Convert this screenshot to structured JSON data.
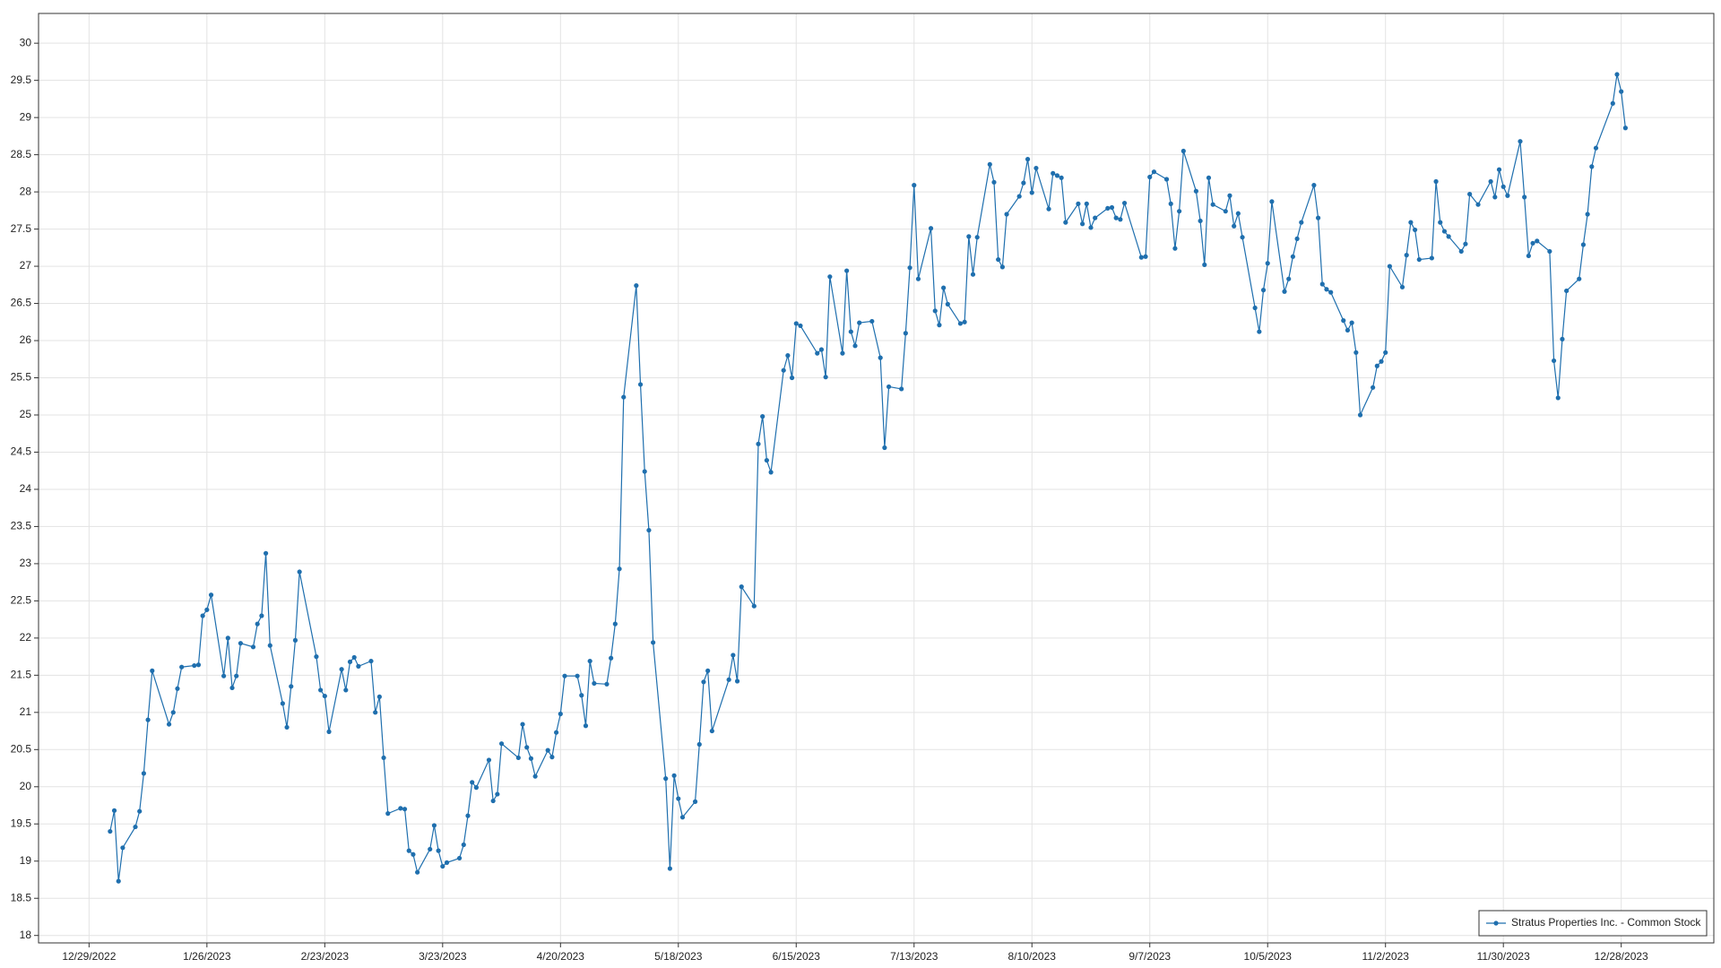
{
  "chart_data": {
    "type": "line",
    "x": [
      "1/3/2023",
      "1/4/2023",
      "1/5/2023",
      "1/6/2023",
      "1/9/2023",
      "1/10/2023",
      "1/11/2023",
      "1/12/2023",
      "1/13/2023",
      "1/17/2023",
      "1/18/2023",
      "1/19/2023",
      "1/20/2023",
      "1/23/2023",
      "1/24/2023",
      "1/25/2023",
      "1/26/2023",
      "1/27/2023",
      "1/30/2023",
      "1/31/2023",
      "2/1/2023",
      "2/2/2023",
      "2/3/2023",
      "2/6/2023",
      "2/7/2023",
      "2/8/2023",
      "2/9/2023",
      "2/10/2023",
      "2/13/2023",
      "2/14/2023",
      "2/15/2023",
      "2/16/2023",
      "2/17/2023",
      "2/21/2023",
      "2/22/2023",
      "2/23/2023",
      "2/24/2023",
      "2/27/2023",
      "2/28/2023",
      "3/1/2023",
      "3/2/2023",
      "3/3/2023",
      "3/6/2023",
      "3/7/2023",
      "3/8/2023",
      "3/9/2023",
      "3/10/2023",
      "3/13/2023",
      "3/14/2023",
      "3/15/2023",
      "3/16/2023",
      "3/17/2023",
      "3/20/2023",
      "3/21/2023",
      "3/22/2023",
      "3/23/2023",
      "3/24/2023",
      "3/27/2023",
      "3/28/2023",
      "3/29/2023",
      "3/30/2023",
      "3/31/2023",
      "4/3/2023",
      "4/4/2023",
      "4/5/2023",
      "4/6/2023",
      "4/10/2023",
      "4/11/2023",
      "4/12/2023",
      "4/13/2023",
      "4/14/2023",
      "4/17/2023",
      "4/18/2023",
      "4/19/2023",
      "4/20/2023",
      "4/21/2023",
      "4/24/2023",
      "4/25/2023",
      "4/26/2023",
      "4/27/2023",
      "4/28/2023",
      "5/1/2023",
      "5/2/2023",
      "5/3/2023",
      "5/4/2023",
      "5/5/2023",
      "5/8/2023",
      "5/9/2023",
      "5/10/2023",
      "5/11/2023",
      "5/12/2023",
      "5/15/2023",
      "5/16/2023",
      "5/17/2023",
      "5/18/2023",
      "5/19/2023",
      "5/22/2023",
      "5/23/2023",
      "5/24/2023",
      "5/25/2023",
      "5/26/2023",
      "5/30/2023",
      "5/31/2023",
      "6/1/2023",
      "6/2/2023",
      "6/5/2023",
      "6/6/2023",
      "6/7/2023",
      "6/8/2023",
      "6/9/2023",
      "6/12/2023",
      "6/13/2023",
      "6/14/2023",
      "6/15/2023",
      "6/16/2023",
      "6/20/2023",
      "6/21/2023",
      "6/22/2023",
      "6/23/2023",
      "6/26/2023",
      "6/27/2023",
      "6/28/2023",
      "6/29/2023",
      "6/30/2023",
      "7/3/2023",
      "7/5/2023",
      "7/6/2023",
      "7/7/2023",
      "7/10/2023",
      "7/11/2023",
      "7/12/2023",
      "7/13/2023",
      "7/14/2023",
      "7/17/2023",
      "7/18/2023",
      "7/19/2023",
      "7/20/2023",
      "7/21/2023",
      "7/24/2023",
      "7/25/2023",
      "7/26/2023",
      "7/27/2023",
      "7/28/2023",
      "7/31/2023",
      "8/1/2023",
      "8/2/2023",
      "8/3/2023",
      "8/4/2023",
      "8/7/2023",
      "8/8/2023",
      "8/9/2023",
      "8/10/2023",
      "8/11/2023",
      "8/14/2023",
      "8/15/2023",
      "8/16/2023",
      "8/17/2023",
      "8/18/2023",
      "8/21/2023",
      "8/22/2023",
      "8/23/2023",
      "8/24/2023",
      "8/25/2023",
      "8/28/2023",
      "8/29/2023",
      "8/30/2023",
      "8/31/2023",
      "9/1/2023",
      "9/5/2023",
      "9/6/2023",
      "9/7/2023",
      "9/8/2023",
      "9/11/2023",
      "9/12/2023",
      "9/13/2023",
      "9/14/2023",
      "9/15/2023",
      "9/18/2023",
      "9/19/2023",
      "9/20/2023",
      "9/21/2023",
      "9/22/2023",
      "9/25/2023",
      "9/26/2023",
      "9/27/2023",
      "9/28/2023",
      "9/29/2023",
      "10/2/2023",
      "10/3/2023",
      "10/4/2023",
      "10/5/2023",
      "10/6/2023",
      "10/9/2023",
      "10/10/2023",
      "10/11/2023",
      "10/12/2023",
      "10/13/2023",
      "10/16/2023",
      "10/17/2023",
      "10/18/2023",
      "10/19/2023",
      "10/20/2023",
      "10/23/2023",
      "10/24/2023",
      "10/25/2023",
      "10/26/2023",
      "10/27/2023",
      "10/30/2023",
      "10/31/2023",
      "11/1/2023",
      "11/2/2023",
      "11/3/2023",
      "11/6/2023",
      "11/7/2023",
      "11/8/2023",
      "11/9/2023",
      "11/10/2023",
      "11/13/2023",
      "11/14/2023",
      "11/15/2023",
      "11/16/2023",
      "11/17/2023",
      "11/20/2023",
      "11/21/2023",
      "11/22/2023",
      "11/24/2023",
      "11/27/2023",
      "11/28/2023",
      "11/29/2023",
      "11/30/2023",
      "12/1/2023",
      "12/4/2023",
      "12/5/2023",
      "12/6/2023",
      "12/7/2023",
      "12/8/2023",
      "12/11/2023",
      "12/12/2023",
      "12/13/2023",
      "12/14/2023",
      "12/15/2023",
      "12/18/2023",
      "12/19/2023",
      "12/20/2023",
      "12/21/2023",
      "12/22/2023",
      "12/26/2023",
      "12/27/2023",
      "12/28/2023",
      "12/29/2023"
    ],
    "series": [
      {
        "name": "Stratus Properties Inc. - Common Stock",
        "color": "#1f6fae",
        "values": [
          19.4,
          19.68,
          18.73,
          19.18,
          19.46,
          19.67,
          20.18,
          20.9,
          21.56,
          20.84,
          21.0,
          21.32,
          21.61,
          21.63,
          21.64,
          22.3,
          22.38,
          22.58,
          21.49,
          22.0,
          21.33,
          21.49,
          21.93,
          21.88,
          22.19,
          22.3,
          23.14,
          21.9,
          21.12,
          20.8,
          21.35,
          21.97,
          22.89,
          21.75,
          21.3,
          21.22,
          20.74,
          21.58,
          21.3,
          21.68,
          21.74,
          21.62,
          21.69,
          21.0,
          21.21,
          20.39,
          19.64,
          19.71,
          19.7,
          19.14,
          19.09,
          18.85,
          19.16,
          19.48,
          19.14,
          18.93,
          18.98,
          19.04,
          19.22,
          19.61,
          20.06,
          19.99,
          20.36,
          19.81,
          19.9,
          20.58,
          20.39,
          20.84,
          20.53,
          20.38,
          20.14,
          20.49,
          20.4,
          20.73,
          20.98,
          21.49,
          21.49,
          21.23,
          20.82,
          21.69,
          21.39,
          21.38,
          21.73,
          22.19,
          22.93,
          25.24,
          26.74,
          25.41,
          24.24,
          23.45,
          21.94,
          20.11,
          18.9,
          20.15,
          19.84,
          19.59,
          19.8,
          20.57,
          21.41,
          21.56,
          20.75,
          21.44,
          21.77,
          21.42,
          22.69,
          22.43,
          24.61,
          24.98,
          24.39,
          24.23,
          25.6,
          25.8,
          25.5,
          26.23,
          26.2,
          25.83,
          25.88,
          25.51,
          26.86,
          25.83,
          26.94,
          26.12,
          25.93,
          26.24,
          26.26,
          25.77,
          24.56,
          25.38,
          25.35,
          26.1,
          26.98,
          28.09,
          26.83,
          27.51,
          26.4,
          26.21,
          26.71,
          26.49,
          26.23,
          26.25,
          27.4,
          26.89,
          27.39,
          28.37,
          28.13,
          27.09,
          26.99,
          27.7,
          27.94,
          28.12,
          28.44,
          27.99,
          28.32,
          27.77,
          28.25,
          28.22,
          28.19,
          27.59,
          27.84,
          27.57,
          27.84,
          27.52,
          27.65,
          27.78,
          27.79,
          27.65,
          27.63,
          27.85,
          27.12,
          27.13,
          28.2,
          28.27,
          28.17,
          27.84,
          27.24,
          27.74,
          28.55,
          28.01,
          27.61,
          27.02,
          28.19,
          27.83,
          27.74,
          27.95,
          27.54,
          27.71,
          27.39,
          26.44,
          26.12,
          26.68,
          27.04,
          27.87,
          26.66,
          26.83,
          27.13,
          27.37,
          27.59,
          28.09,
          27.65,
          26.76,
          26.69,
          26.65,
          26.27,
          26.14,
          26.24,
          25.84,
          25.0,
          25.37,
          25.66,
          25.72,
          25.84,
          27.0,
          26.72,
          27.15,
          27.59,
          27.49,
          27.09,
          27.11,
          28.14,
          27.59,
          27.47,
          27.4,
          27.2,
          27.3,
          27.97,
          27.83,
          28.14,
          27.93,
          28.3,
          28.07,
          27.95,
          28.68,
          27.93,
          27.14,
          27.31,
          27.34,
          27.2,
          25.73,
          25.23,
          26.02,
          26.67,
          26.83,
          27.29,
          27.7,
          28.34,
          28.59,
          29.19,
          29.58,
          29.35,
          28.86
        ]
      }
    ],
    "xlim": [
      "12/17/2022",
      "1/19/2024"
    ],
    "xticks": [
      "12/29/2022",
      "1/26/2023",
      "2/23/2023",
      "3/23/2023",
      "4/20/2023",
      "5/18/2023",
      "6/15/2023",
      "7/13/2023",
      "8/10/2023",
      "9/7/2023",
      "10/5/2023",
      "11/2/2023",
      "11/30/2023",
      "12/28/2023"
    ],
    "ylim": [
      17.9,
      30.4
    ],
    "yticks": [
      18,
      18.5,
      19,
      19.5,
      20,
      20.5,
      21,
      21.5,
      22,
      22.5,
      23,
      23.5,
      24,
      24.5,
      25,
      25.5,
      26,
      26.5,
      27,
      27.5,
      28,
      28.5,
      29,
      29.5,
      30
    ],
    "grid": true,
    "legend": "bottom-right"
  }
}
